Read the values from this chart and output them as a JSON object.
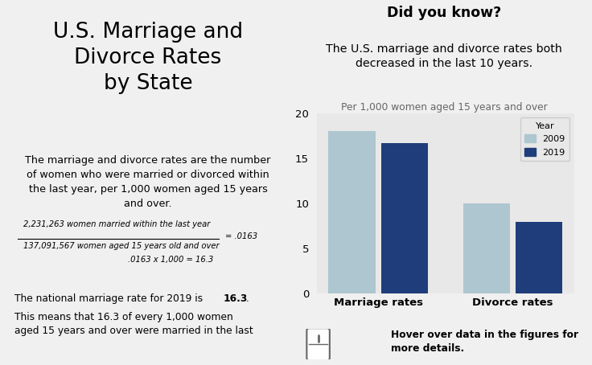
{
  "main_title": "U.S. Marriage and\nDivorce Rates\nby State",
  "did_you_know_title": "Did you know?",
  "did_you_know_subtitle": "The U.S. marriage and divorce rates both\ndecreased in the last 10 years.",
  "subtitle_note": "Per 1,000 women aged 15 years and over",
  "definition_text": "The marriage and divorce rates are the number\nof women who were married or divorced within\nthe last year, per 1,000 women aged 15 years\nand over.",
  "formula_numerator": "2,231,263 women married within the last year",
  "formula_denominator": "137,091,567 women aged 15 years old and over",
  "formula_result": "= .0163",
  "formula_calc": ".0163 x 1,000 = 16.3",
  "categories": [
    "Marriage rates",
    "Divorce rates"
  ],
  "values_2009": [
    18.0,
    10.0
  ],
  "values_2019": [
    16.7,
    8.0
  ],
  "color_2009": "#aec6cf",
  "color_2019": "#1f3d7a",
  "ylim": [
    0,
    20
  ],
  "yticks": [
    0,
    5,
    10,
    15,
    20
  ],
  "legend_title": "Year",
  "legend_2009": "2009",
  "legend_2019": "2019",
  "hover_text": "Hover over data in the figures for\nmore details.",
  "background_color": "#f0f0f0",
  "chart_bg_color": "#e8e8e8"
}
